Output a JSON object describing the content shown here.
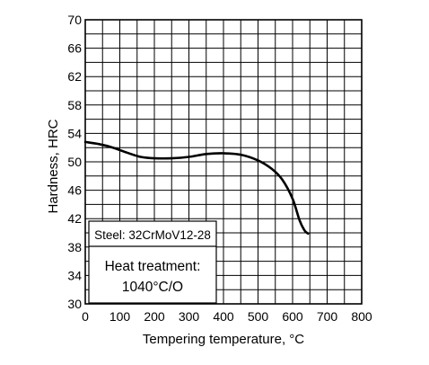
{
  "chart_data": {
    "type": "line",
    "title": "",
    "xlabel": "Tempering temperature, °C",
    "ylabel": "Hardness, HRC",
    "xlim": [
      0,
      800
    ],
    "ylim": [
      30,
      70
    ],
    "x_ticks": [
      0,
      100,
      200,
      300,
      400,
      500,
      600,
      700,
      800
    ],
    "y_ticks": [
      30,
      34,
      38,
      42,
      46,
      50,
      54,
      58,
      62,
      66,
      70
    ],
    "x_minor_step": 50,
    "y_minor_step": 2,
    "grid": true,
    "series": [
      {
        "x": [
          0,
          40,
          80,
          120,
          160,
          200,
          250,
          300,
          350,
          400,
          450,
          500,
          540,
          570,
          600,
          620,
          635,
          645
        ],
        "y": [
          52.8,
          52.5,
          52.0,
          51.3,
          50.7,
          50.5,
          50.5,
          50.7,
          51.1,
          51.2,
          51.0,
          50.2,
          49.0,
          47.5,
          44.8,
          41.8,
          40.3,
          39.9
        ]
      }
    ],
    "annotations": {
      "line1": "Steel: 32CrMoV12-28",
      "line2": "Heat treatment:",
      "line3": "1040°C/O"
    }
  }
}
